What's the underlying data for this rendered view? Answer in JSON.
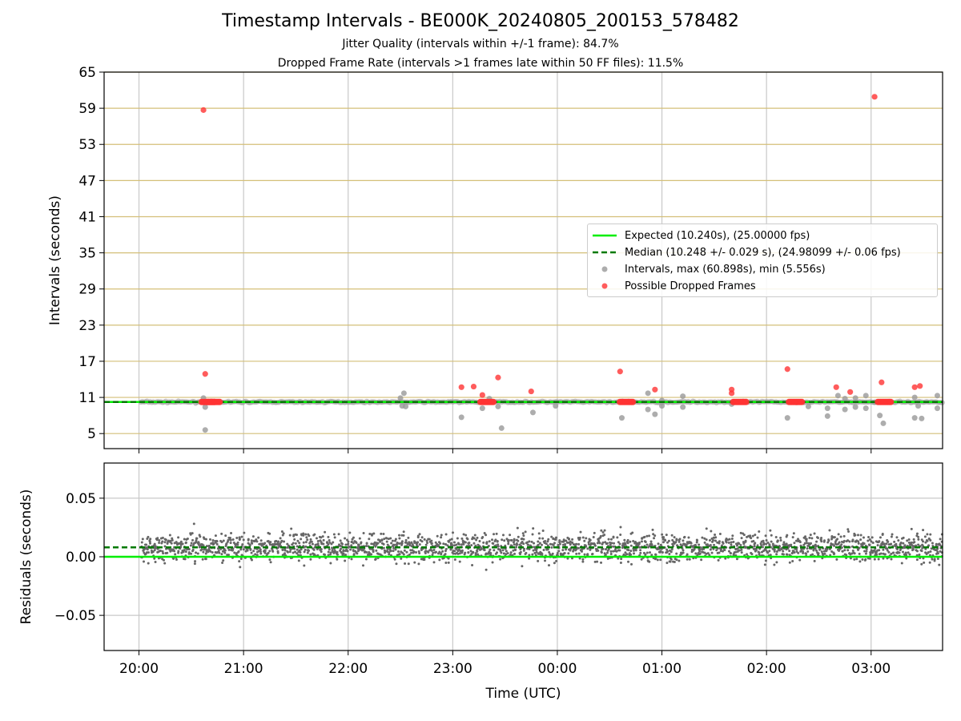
{
  "chart_data": [
    {
      "type": "scatter",
      "title": "Timestamp Intervals - BE000K_20240805_200153_578482",
      "subtitle_lines": [
        "Jitter Quality (intervals within +/-1 frame): 84.7%",
        "Dropped Frame Rate (intervals >1 frames late within 50 FF files): 11.5%"
      ],
      "xlabel": "",
      "ylabel": "Intervals (seconds)",
      "x_is_time": true,
      "x_range": [
        "19:40",
        "03:41"
      ],
      "ylim": [
        2.5,
        65
      ],
      "yticks": [
        5,
        11,
        17,
        23,
        29,
        35,
        41,
        47,
        53,
        59,
        65
      ],
      "grid": true,
      "legend_placement": "center-right",
      "series": [
        {
          "name": "Expected (10.240s), (25.00000 fps)",
          "kind": "hline",
          "y": 10.24,
          "color": "#00ee00"
        },
        {
          "name": "Median (10.248 +/- 0.029 s), (24.98099 +/- 0.06 fps)",
          "kind": "hline-dashed",
          "y": 10.248,
          "color": "#007a00"
        },
        {
          "name": "Intervals, max (60.898s), min (5.556s)",
          "kind": "points",
          "color": "#999999",
          "points": [
            [
              "20:37",
              10.9
            ],
            [
              "20:38",
              9.4
            ],
            [
              "20:38",
              5.6
            ],
            [
              "22:30",
              10.9
            ],
            [
              "22:31",
              9.6
            ],
            [
              "22:32",
              11.7
            ],
            [
              "22:33",
              9.5
            ],
            [
              "23:05",
              7.7
            ],
            [
              "23:17",
              9.2
            ],
            [
              "23:21",
              10.8
            ],
            [
              "23:26",
              9.5
            ],
            [
              "23:28",
              5.9
            ],
            [
              "23:46",
              8.5
            ],
            [
              "23:59",
              9.6
            ],
            [
              "00:37",
              7.6
            ],
            [
              "00:52",
              9.0
            ],
            [
              "00:52",
              11.7
            ],
            [
              "00:56",
              8.2
            ],
            [
              "01:00",
              9.6
            ],
            [
              "01:00",
              10.5
            ],
            [
              "01:12",
              9.4
            ],
            [
              "01:12",
              11.2
            ],
            [
              "01:40",
              9.9
            ],
            [
              "02:12",
              7.6
            ],
            [
              "02:24",
              9.5
            ],
            [
              "02:35",
              9.2
            ],
            [
              "02:35",
              7.9
            ],
            [
              "02:41",
              11.3
            ],
            [
              "02:45",
              10.8
            ],
            [
              "02:45",
              9.0
            ],
            [
              "02:51",
              10.9
            ],
            [
              "02:51",
              9.4
            ],
            [
              "02:57",
              9.2
            ],
            [
              "02:57",
              11.3
            ],
            [
              "03:02",
              10.2
            ],
            [
              "03:05",
              8.0
            ],
            [
              "03:07",
              6.7
            ],
            [
              "03:25",
              7.6
            ],
            [
              "03:25",
              11.0
            ],
            [
              "03:27",
              9.6
            ],
            [
              "03:29",
              7.5
            ],
            [
              "03:38",
              9.2
            ],
            [
              "03:38",
              11.3
            ]
          ]
        },
        {
          "name": "Possible Dropped Frames",
          "kind": "points",
          "color": "#ff3333",
          "points": [
            [
              "20:37",
              58.7
            ],
            [
              "20:38",
              14.9
            ],
            [
              "23:05",
              12.7
            ],
            [
              "23:12",
              12.8
            ],
            [
              "23:17",
              11.4
            ],
            [
              "23:26",
              14.3
            ],
            [
              "23:45",
              12.0
            ],
            [
              "00:36",
              15.3
            ],
            [
              "00:56",
              12.3
            ],
            [
              "01:40",
              12.3
            ],
            [
              "01:40",
              11.7
            ],
            [
              "02:12",
              15.7
            ],
            [
              "02:40",
              12.7
            ],
            [
              "02:48",
              11.9
            ],
            [
              "03:02",
              60.9
            ],
            [
              "03:06",
              13.5
            ],
            [
              "03:25",
              12.7
            ],
            [
              "03:28",
              12.9
            ],
            [
              "20:40",
              10.24
            ],
            [
              "20:43",
              10.24
            ],
            [
              "23:20",
              10.24
            ],
            [
              "00:40",
              10.24
            ],
            [
              "01:45",
              10.24
            ],
            [
              "02:17",
              10.24
            ],
            [
              "03:08",
              10.24
            ]
          ]
        }
      ]
    },
    {
      "type": "scatter",
      "xlabel": "Time (UTC)",
      "ylabel": "Residuals (seconds)",
      "x_range": [
        "19:40",
        "03:41"
      ],
      "ylim": [
        -0.08,
        0.08
      ],
      "yticks": [
        -0.05,
        0.0,
        0.05
      ],
      "ytick_labels": [
        "−0.05",
        "0.00",
        "0.05"
      ],
      "xticks": [
        "20:00",
        "21:00",
        "22:00",
        "23:00",
        "00:00",
        "01:00",
        "02:00",
        "03:00"
      ],
      "grid": true,
      "expected_residual": 0.0,
      "median_residual": 0.008,
      "residual_spread_sd": 0.022,
      "point_color": "#666666",
      "expected_color": "#00ee00",
      "median_color": "#007a00",
      "data_start": "20:01",
      "data_end": "03:41"
    }
  ]
}
